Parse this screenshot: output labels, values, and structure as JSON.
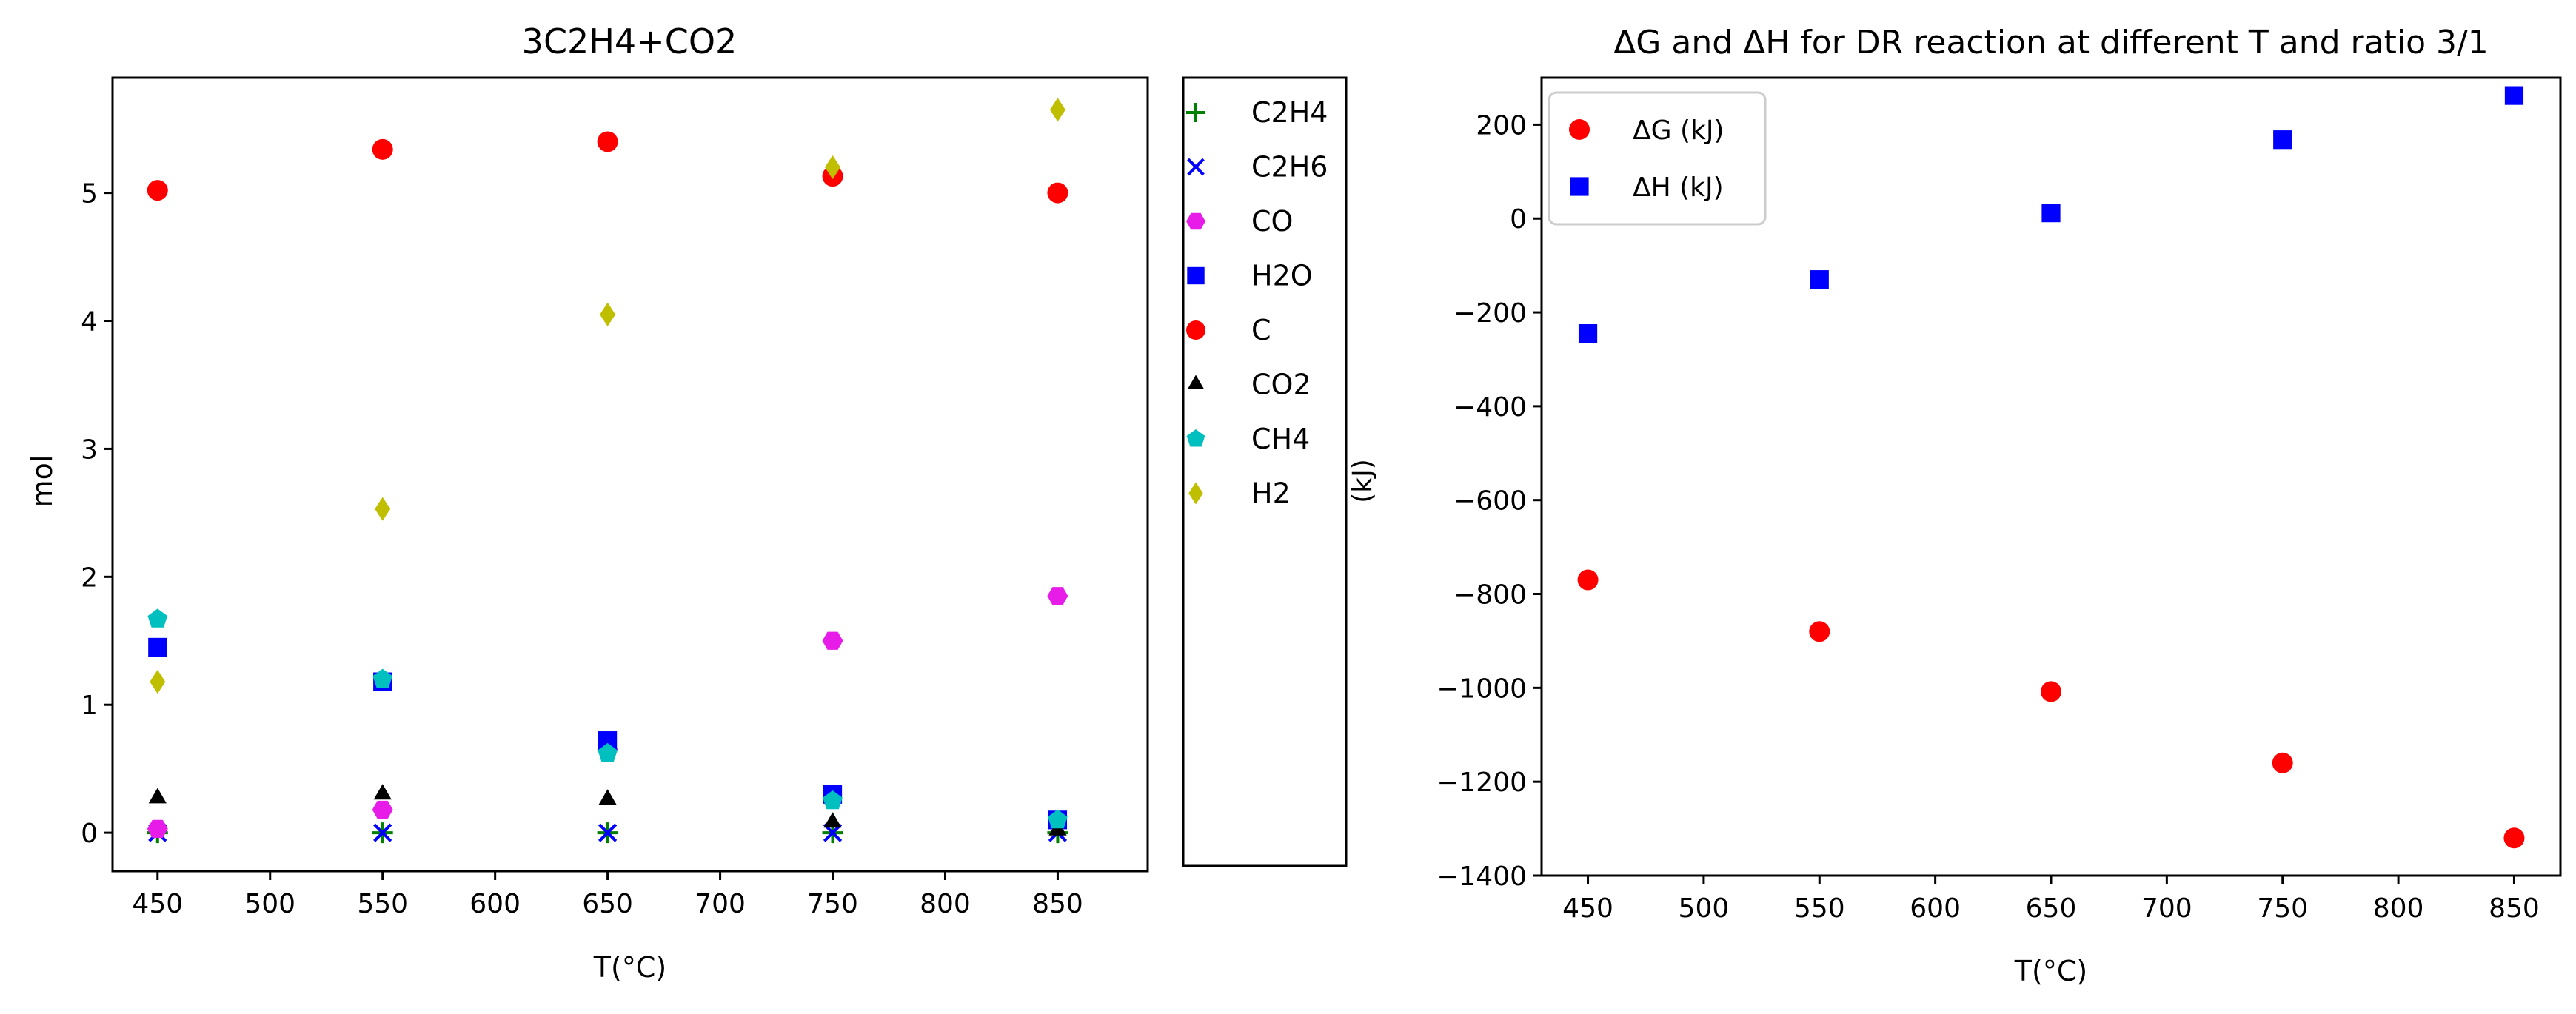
{
  "chart_data": [
    {
      "type": "scatter",
      "title": "3C2H4+CO2",
      "xlabel": "T(°C)",
      "ylabel": "mol",
      "xlim": [
        430,
        890
      ],
      "ylim": [
        -0.3,
        5.9
      ],
      "xticks": [
        450,
        500,
        550,
        600,
        650,
        700,
        750,
        800,
        850
      ],
      "yticks": [
        0,
        1,
        2,
        3,
        4,
        5
      ],
      "grid": false,
      "legend_position": "outside-right",
      "x": [
        450,
        550,
        650,
        750,
        850
      ],
      "series": [
        {
          "name": "C2H4",
          "marker": "plus",
          "color": "#008000",
          "values": [
            0.0,
            0.0,
            0.0,
            0.0,
            0.0
          ]
        },
        {
          "name": "C2H6",
          "marker": "x",
          "color": "#0000ff",
          "values": [
            0.0,
            0.0,
            0.0,
            0.0,
            0.0
          ]
        },
        {
          "name": "CO",
          "marker": "hexagon",
          "color": "#e81ce8",
          "values": [
            0.03,
            0.18,
            0.65,
            1.5,
            1.85
          ]
        },
        {
          "name": "H2O",
          "marker": "square",
          "color": "#0000ff",
          "values": [
            1.45,
            1.18,
            0.72,
            0.3,
            0.1
          ]
        },
        {
          "name": "C",
          "marker": "circle",
          "color": "#ff0000",
          "values": [
            5.02,
            5.34,
            5.4,
            5.13,
            5.0
          ]
        },
        {
          "name": "CO2",
          "marker": "triangle",
          "color": "#000000",
          "values": [
            0.27,
            0.3,
            0.26,
            0.08,
            0.02
          ]
        },
        {
          "name": "CH4",
          "marker": "pentagon",
          "color": "#00bfbf",
          "values": [
            1.67,
            1.2,
            0.62,
            0.25,
            0.1
          ]
        },
        {
          "name": "H2",
          "marker": "diamond",
          "color": "#bfbf00",
          "values": [
            1.18,
            2.53,
            4.05,
            5.2,
            5.65
          ]
        }
      ]
    },
    {
      "type": "scatter",
      "title": "ΔG and ΔH for DR reaction at different T and ratio 3/1",
      "xlabel": "T(°C)",
      "ylabel": "(kJ)",
      "xlim": [
        430,
        870
      ],
      "ylim": [
        -1400,
        300
      ],
      "xticks": [
        450,
        500,
        550,
        600,
        650,
        700,
        750,
        800,
        850
      ],
      "yticks": [
        200,
        0,
        -200,
        -400,
        -600,
        -800,
        -1000,
        -1200,
        -1400
      ],
      "grid": false,
      "legend_position": "top-left",
      "x": [
        450,
        550,
        650,
        750,
        850
      ],
      "series": [
        {
          "name": "ΔG (kJ)",
          "marker": "circle",
          "color": "#ff0000",
          "values": [
            -770,
            -880,
            -1008,
            -1160,
            -1320
          ]
        },
        {
          "name": "ΔH (kJ)",
          "marker": "square",
          "color": "#0000ff",
          "values": [
            -245,
            -130,
            12,
            168,
            262
          ]
        }
      ]
    }
  ]
}
